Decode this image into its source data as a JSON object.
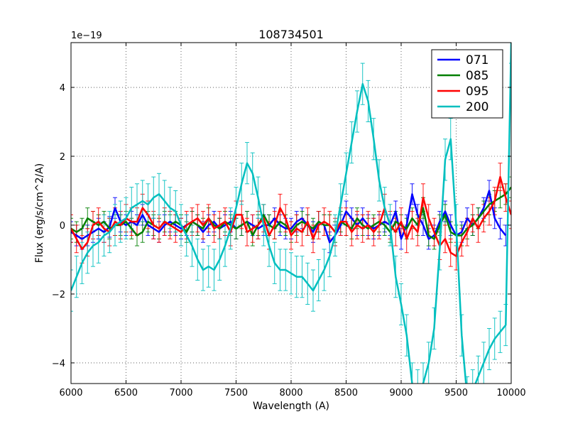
{
  "chart_data": {
    "type": "line",
    "title": "108734501",
    "xlabel": "Wavelength (A)",
    "ylabel": "Flux (erg/s/cm^2/A)",
    "offset_label": "1e−19",
    "xlim": [
      6000,
      10000
    ],
    "ylim": [
      -4.6,
      5.3
    ],
    "xticks": [
      6000,
      6500,
      7000,
      7500,
      8000,
      8500,
      9000,
      9500,
      10000
    ],
    "yticks": [
      -4,
      -2,
      0,
      2,
      4
    ],
    "ytick_labels": [
      "−4",
      "−2",
      "0",
      "2",
      "4"
    ],
    "grid": true,
    "legend_position": "top-right",
    "series": [
      {
        "name": "071",
        "color": "#0000ff",
        "x": [
          6000,
          6050,
          6100,
          6150,
          6200,
          6250,
          6300,
          6350,
          6400,
          6450,
          6500,
          6550,
          6600,
          6650,
          6700,
          6750,
          6800,
          6850,
          6900,
          6950,
          7000,
          7050,
          7100,
          7150,
          7200,
          7250,
          7300,
          7350,
          7400,
          7450,
          7500,
          7550,
          7600,
          7650,
          7700,
          7750,
          7800,
          7850,
          7900,
          7950,
          8000,
          8050,
          8100,
          8150,
          8200,
          8250,
          8300,
          8350,
          8400,
          8450,
          8500,
          8550,
          8600,
          8650,
          8700,
          8750,
          8800,
          8850,
          8900,
          8950,
          9000,
          9050,
          9100,
          9150,
          9200,
          9250,
          9300,
          9350,
          9400,
          9450,
          9500,
          9550,
          9600,
          9650,
          9700,
          9750,
          9800,
          9850,
          9900,
          9950
        ],
        "y": [
          -0.2,
          -0.3,
          -0.4,
          -0.3,
          -0.2,
          -0.1,
          -0.2,
          -0.05,
          0.5,
          0.1,
          0.0,
          0.1,
          0.0,
          0.3,
          0.0,
          -0.1,
          -0.2,
          0.0,
          0.1,
          0.0,
          -0.1,
          0.0,
          0.1,
          0.0,
          -0.2,
          0.0,
          0.1,
          -0.1,
          0.0,
          0.1,
          -0.1,
          0.0,
          0.1,
          0.0,
          -0.1,
          0.0,
          0.0,
          0.2,
          0.0,
          -0.1,
          -0.1,
          0.1,
          0.2,
          0.0,
          -0.2,
          0.1,
          0.0,
          -0.5,
          -0.3,
          0.0,
          0.4,
          0.2,
          0.0,
          0.2,
          0.0,
          -0.1,
          0.0,
          0.1,
          0.0,
          0.4,
          -0.4,
          0.0,
          0.9,
          0.3,
          0.0,
          -0.4,
          -0.3,
          0.1,
          0.4,
          0.0,
          -0.3,
          -0.2,
          0.2,
          0.0,
          0.2,
          0.5,
          1.0,
          0.2,
          -0.1,
          -0.3
        ],
        "yerr": 0.3
      },
      {
        "name": "085",
        "color": "#007f00",
        "x": [
          6000,
          6050,
          6100,
          6150,
          6200,
          6250,
          6300,
          6350,
          6400,
          6450,
          6500,
          6550,
          6600,
          6650,
          6700,
          6750,
          6800,
          6850,
          6900,
          6950,
          7000,
          7050,
          7100,
          7150,
          7200,
          7250,
          7300,
          7350,
          7400,
          7450,
          7500,
          7550,
          7600,
          7650,
          7700,
          7750,
          7800,
          7850,
          7900,
          7950,
          8000,
          8050,
          8100,
          8150,
          8200,
          8250,
          8300,
          8350,
          8400,
          8450,
          8500,
          8550,
          8600,
          8650,
          8700,
          8750,
          8800,
          8850,
          8900,
          8950,
          9000,
          9050,
          9100,
          9150,
          9200,
          9250,
          9300,
          9350,
          9400,
          9450,
          9500,
          9550,
          9600,
          9650,
          9700,
          9750,
          9800,
          9850,
          9900,
          9950,
          10000
        ],
        "y": [
          -0.1,
          -0.2,
          -0.1,
          0.2,
          0.1,
          0.0,
          0.1,
          -0.1,
          0.0,
          0.0,
          0.1,
          -0.1,
          -0.3,
          -0.2,
          0.1,
          0.0,
          -0.1,
          0.1,
          0.0,
          0.1,
          0.0,
          -0.2,
          0.1,
          0.0,
          -0.1,
          0.2,
          0.0,
          -0.1,
          0.1,
          0.0,
          -0.1,
          0.0,
          0.1,
          -0.3,
          0.0,
          0.3,
          0.0,
          -0.1,
          0.1,
          0.0,
          -0.2,
          0.0,
          0.1,
          0.0,
          -0.1,
          0.1,
          0.0,
          0.0,
          -0.2,
          0.1,
          0.0,
          -0.1,
          0.2,
          0.0,
          -0.1,
          0.0,
          0.1,
          0.0,
          -0.2,
          0.1,
          0.0,
          -0.1,
          0.2,
          0.0,
          0.5,
          -0.3,
          -0.4,
          0.0,
          0.3,
          -0.2,
          -0.3,
          -0.3,
          -0.1,
          0.0,
          0.2,
          0.4,
          0.6,
          0.7,
          0.8,
          0.9,
          1.1
        ],
        "yerr": 0.3
      },
      {
        "name": "095",
        "color": "#ff0000",
        "x": [
          6000,
          6050,
          6100,
          6150,
          6200,
          6250,
          6300,
          6350,
          6400,
          6450,
          6500,
          6550,
          6600,
          6650,
          6700,
          6750,
          6800,
          6850,
          6900,
          6950,
          7000,
          7050,
          7100,
          7150,
          7200,
          7250,
          7300,
          7350,
          7400,
          7450,
          7500,
          7550,
          7600,
          7650,
          7700,
          7750,
          7800,
          7850,
          7900,
          7950,
          8000,
          8050,
          8100,
          8150,
          8200,
          8250,
          8300,
          8350,
          8400,
          8450,
          8500,
          8550,
          8600,
          8650,
          8700,
          8750,
          8800,
          8850,
          8900,
          8950,
          9000,
          9050,
          9100,
          9150,
          9200,
          9250,
          9300,
          9350,
          9400,
          9450,
          9500,
          9550,
          9600,
          9650,
          9700,
          9750,
          9800,
          9850,
          9900,
          9950,
          10000
        ],
        "y": [
          -0.1,
          -0.4,
          -0.7,
          -0.5,
          0.0,
          0.1,
          -0.1,
          -0.2,
          0.1,
          0.0,
          0.2,
          0.1,
          0.1,
          0.5,
          0.3,
          0.0,
          -0.1,
          0.1,
          0.0,
          -0.1,
          -0.2,
          0.0,
          0.1,
          0.2,
          0.0,
          0.2,
          -0.1,
          0.0,
          0.1,
          -0.2,
          0.3,
          0.3,
          -0.2,
          -0.1,
          0.0,
          0.2,
          -0.3,
          0.0,
          0.5,
          0.2,
          -0.3,
          -0.1,
          -0.2,
          0.1,
          -0.4,
          0.0,
          0.1,
          0.0,
          -0.2,
          0.1,
          0.1,
          -0.2,
          0.0,
          -0.1,
          0.0,
          -0.2,
          0.0,
          0.5,
          0.0,
          -0.2,
          0.1,
          -0.4,
          0.0,
          -0.2,
          0.8,
          0.2,
          -0.2,
          -0.6,
          -0.4,
          -0.8,
          -0.9,
          -0.5,
          -0.2,
          0.2,
          -0.1,
          0.2,
          0.4,
          0.7,
          1.4,
          0.8,
          0.3
        ],
        "yerr": 0.4
      },
      {
        "name": "200",
        "color": "#00bfbf",
        "x": [
          6000,
          6050,
          6100,
          6150,
          6200,
          6250,
          6300,
          6350,
          6400,
          6450,
          6500,
          6550,
          6600,
          6650,
          6700,
          6750,
          6800,
          6850,
          6900,
          6950,
          7000,
          7050,
          7100,
          7150,
          7200,
          7250,
          7300,
          7350,
          7400,
          7450,
          7500,
          7550,
          7600,
          7650,
          7700,
          7750,
          7800,
          7850,
          7900,
          7950,
          8000,
          8050,
          8100,
          8150,
          8200,
          8250,
          8300,
          8350,
          8400,
          8450,
          8500,
          8550,
          8600,
          8650,
          8700,
          8750,
          8800,
          8850,
          8900,
          8950,
          9000,
          9050,
          9100,
          9150,
          9200,
          9250,
          9300,
          9350,
          9400,
          9450,
          9500,
          9550,
          9600,
          9650,
          9700,
          9750,
          9800,
          9850,
          9900,
          9950,
          10000
        ],
        "y": [
          -1.9,
          -1.5,
          -1.1,
          -0.8,
          -0.6,
          -0.5,
          -0.3,
          -0.2,
          0.0,
          0.1,
          0.2,
          0.5,
          0.6,
          0.7,
          0.6,
          0.8,
          0.9,
          0.7,
          0.5,
          0.4,
          0.0,
          -0.3,
          -0.6,
          -1.0,
          -1.3,
          -1.2,
          -1.3,
          -1.0,
          -0.6,
          -0.1,
          0.5,
          1.2,
          1.8,
          1.5,
          0.8,
          0.0,
          -0.6,
          -1.1,
          -1.3,
          -1.3,
          -1.4,
          -1.5,
          -1.5,
          -1.7,
          -1.9,
          -1.6,
          -1.3,
          -0.9,
          -0.3,
          0.6,
          1.5,
          2.4,
          3.3,
          4.1,
          3.6,
          2.5,
          1.3,
          0.5,
          0.0,
          -1.5,
          -2.3,
          -3.2,
          -4.6,
          -4.8,
          -4.6,
          -4.0,
          -3.0,
          -0.7,
          1.9,
          2.5,
          0.0,
          -3.2,
          -5.0,
          -4.8,
          -4.4,
          -4.0,
          -3.6,
          -3.3,
          -3.1,
          -2.9,
          5.3
        ],
        "yerr": 0.6
      }
    ]
  }
}
